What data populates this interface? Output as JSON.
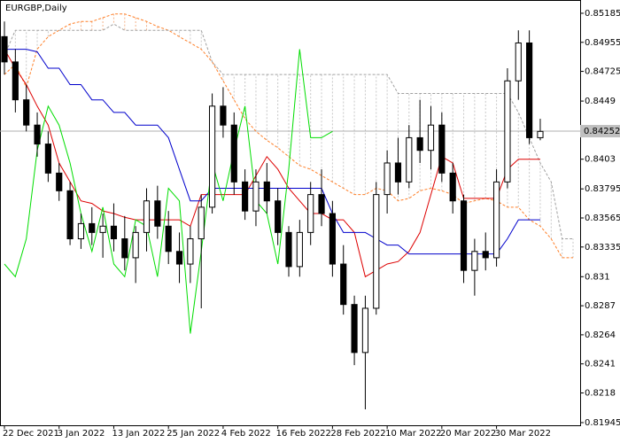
{
  "chart_data": {
    "type": "candlestick",
    "title": "EURGBP,Daily",
    "x": [
      "22 Dec 2021",
      null,
      null,
      null,
      null,
      "3 Jan 2022",
      null,
      null,
      null,
      null,
      "13 Jan 2022",
      null,
      null,
      null,
      null,
      "25 Jan 2022",
      null,
      null,
      null,
      null,
      "4 Feb 2022",
      null,
      null,
      null,
      null,
      "16 Feb 2022",
      null,
      null,
      null,
      null,
      "28 Feb 2022",
      null,
      null,
      null,
      null,
      "10 Mar 2022",
      null,
      null,
      null,
      null,
      "20 Mar 2022",
      null,
      null,
      null,
      null,
      "30 Mar 2022",
      null,
      null,
      null,
      null,
      null,
      null,
      null
    ],
    "candles": {
      "open": [
        0.85,
        0.848,
        0.845,
        0.843,
        0.8415,
        0.8392,
        0.8378,
        0.834,
        0.8352,
        0.8345,
        0.835,
        0.834,
        0.8325,
        0.8345,
        0.837,
        0.835,
        0.833,
        0.832,
        0.834,
        0.8365,
        0.8445,
        0.843,
        0.8385,
        0.8362,
        0.8385,
        0.837,
        0.8345,
        0.8318,
        0.8345,
        0.8375,
        0.836,
        0.832,
        0.8288,
        0.825,
        0.8285,
        0.8375,
        0.84,
        0.8385,
        0.842,
        0.841,
        0.843,
        0.8392,
        0.837,
        0.8315,
        0.833,
        0.8325,
        0.8385,
        0.8465,
        0.8495,
        0.842,
        null,
        null,
        null
      ],
      "high": [
        0.8512,
        0.849,
        0.8462,
        0.844,
        0.8425,
        0.84,
        0.8385,
        0.836,
        0.8365,
        0.836,
        0.8368,
        0.8358,
        0.835,
        0.838,
        0.8382,
        0.8362,
        0.8345,
        0.835,
        0.8375,
        0.8455,
        0.846,
        0.844,
        0.8395,
        0.8395,
        0.84,
        0.838,
        0.835,
        0.8355,
        0.8385,
        0.8395,
        0.837,
        0.8335,
        0.8295,
        0.8295,
        0.8385,
        0.841,
        0.842,
        0.843,
        0.845,
        0.8445,
        0.844,
        0.84,
        0.8375,
        0.834,
        0.8345,
        0.8395,
        0.8475,
        0.8505,
        0.8505,
        0.8435,
        null,
        null,
        null
      ],
      "low": [
        0.847,
        0.844,
        0.8425,
        0.8405,
        0.8385,
        0.837,
        0.8335,
        0.8332,
        0.8335,
        0.8325,
        0.833,
        0.8315,
        0.8305,
        0.833,
        0.834,
        0.832,
        0.8305,
        0.8305,
        0.8285,
        0.836,
        0.842,
        0.8375,
        0.8355,
        0.835,
        0.836,
        0.8335,
        0.831,
        0.831,
        0.8335,
        0.835,
        0.831,
        0.828,
        0.824,
        0.8205,
        0.828,
        0.836,
        0.8375,
        0.838,
        0.84,
        0.8395,
        0.8385,
        0.836,
        0.8305,
        0.8295,
        0.8315,
        0.8318,
        0.838,
        0.845,
        0.8415,
        0.8418,
        null,
        null,
        null
      ],
      "close": [
        0.848,
        0.845,
        0.843,
        0.8415,
        0.8392,
        0.8378,
        0.834,
        0.8352,
        0.8345,
        0.835,
        0.834,
        0.8325,
        0.8345,
        0.837,
        0.835,
        0.833,
        0.832,
        0.834,
        0.8365,
        0.8445,
        0.843,
        0.8385,
        0.8362,
        0.8385,
        0.837,
        0.8345,
        0.8318,
        0.8345,
        0.8375,
        0.836,
        0.832,
        0.8288,
        0.825,
        0.8285,
        0.8375,
        0.84,
        0.8385,
        0.842,
        0.841,
        0.843,
        0.8392,
        0.837,
        0.8315,
        0.833,
        0.8325,
        0.8385,
        0.8465,
        0.8495,
        0.842,
        0.8425,
        null,
        null,
        null
      ],
      "up_color": "#ffffff",
      "down_color": "#000000",
      "outline": "#000000"
    },
    "series": [
      {
        "color": "#ff7f27",
        "dash": true,
        "values": [
          0.847,
          0.8478,
          0.846,
          0.849,
          0.85,
          0.8505,
          0.851,
          0.8512,
          0.8512,
          0.8515,
          0.8518,
          0.8518,
          0.8515,
          0.8512,
          0.8508,
          0.8505,
          0.85,
          0.8495,
          0.849,
          0.848,
          0.8465,
          0.845,
          0.8435,
          0.8425,
          0.8418,
          0.8412,
          0.8405,
          0.8398,
          0.8395,
          0.839,
          0.8385,
          0.838,
          0.8375,
          0.8375,
          0.838,
          0.8378,
          0.837,
          0.8372,
          0.8378,
          0.838,
          0.8378,
          0.8375,
          0.8368,
          0.837,
          0.8372,
          0.837,
          0.8365,
          0.8365,
          0.8355,
          0.835,
          0.834,
          0.8325,
          0.8325
        ]
      },
      {
        "color": "#a0a0a0",
        "dash": true,
        "values": [
          0.8485,
          0.8505,
          0.8505,
          0.8505,
          0.8505,
          0.8505,
          0.8505,
          0.8505,
          0.8505,
          0.8505,
          0.851,
          0.8505,
          0.8505,
          0.8505,
          0.8505,
          0.8505,
          0.8505,
          0.8505,
          0.8505,
          0.848,
          0.847,
          0.847,
          0.847,
          0.847,
          0.847,
          0.847,
          0.847,
          0.847,
          0.847,
          0.847,
          0.847,
          0.847,
          0.847,
          0.847,
          0.847,
          0.847,
          0.8455,
          0.8455,
          0.8455,
          0.8455,
          0.8455,
          0.8455,
          0.8455,
          0.8455,
          0.8455,
          0.8455,
          0.8455,
          0.844,
          0.842,
          0.84,
          0.8385,
          0.834,
          0.834
        ]
      },
      {
        "color": "#dd0000",
        "dash": false,
        "values": [
          0.849,
          0.8475,
          0.8462,
          0.8445,
          0.843,
          0.84,
          0.8385,
          0.837,
          0.8368,
          0.8362,
          0.836,
          0.8357,
          0.8355,
          0.8355,
          0.8355,
          0.8355,
          0.8355,
          0.835,
          0.8375,
          0.8375,
          0.8375,
          0.8375,
          0.8375,
          0.839,
          0.8405,
          0.8395,
          0.838,
          0.837,
          0.836,
          0.836,
          0.8355,
          0.8355,
          0.8345,
          0.831,
          0.8315,
          0.832,
          0.8322,
          0.833,
          0.8345,
          0.8375,
          0.8405,
          0.84,
          0.8372,
          0.8372,
          0.8372,
          0.8372,
          0.8395,
          0.8403,
          0.8403,
          0.8403,
          null,
          null,
          null
        ]
      },
      {
        "color": "#0000cc",
        "dash": false,
        "values": [
          0.849,
          0.849,
          0.849,
          0.8488,
          0.8475,
          0.8475,
          0.8462,
          0.8462,
          0.845,
          0.845,
          0.844,
          0.844,
          0.843,
          0.843,
          0.843,
          0.842,
          0.8395,
          0.837,
          0.837,
          0.838,
          0.838,
          0.838,
          0.838,
          0.838,
          0.838,
          0.838,
          0.838,
          0.838,
          0.838,
          0.838,
          0.836,
          0.8345,
          0.8345,
          0.8345,
          0.834,
          0.8335,
          0.8335,
          0.8328,
          0.8328,
          0.8328,
          0.8328,
          0.8328,
          0.8328,
          0.8328,
          0.8328,
          0.8328,
          0.834,
          0.8355,
          0.8355,
          0.8355,
          null,
          null,
          null
        ]
      },
      {
        "color": "#00dd00",
        "dash": false,
        "values": [
          0.832,
          0.831,
          0.834,
          0.841,
          0.8445,
          0.843,
          0.84,
          0.836,
          0.833,
          0.8365,
          0.832,
          0.831,
          0.8355,
          0.835,
          0.831,
          0.838,
          0.837,
          0.8265,
          0.833,
          0.84,
          0.837,
          0.841,
          0.8445,
          0.837,
          0.836,
          0.832,
          0.8395,
          0.849,
          0.842,
          0.842,
          0.8425,
          null,
          null,
          null,
          null,
          null,
          null,
          null,
          null,
          null,
          null,
          null,
          null,
          null,
          null,
          null,
          null,
          null,
          null,
          null,
          null,
          null,
          null
        ]
      }
    ],
    "current_price": 0.84252,
    "ylim": [
      0.81924,
      0.8529
    ],
    "yticks": [
      0.85185,
      0.84955,
      0.84725,
      0.8449,
      0.8403,
      0.83795,
      0.83565,
      0.83335,
      0.831,
      0.8287,
      0.8264,
      0.8241,
      0.8218,
      0.81945
    ]
  }
}
